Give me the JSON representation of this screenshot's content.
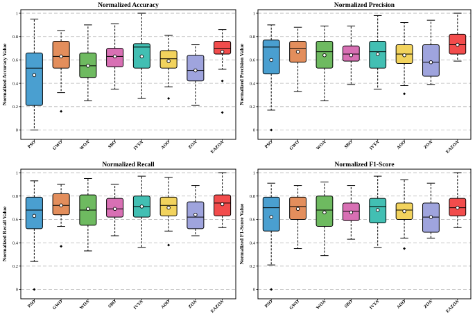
{
  "categories": [
    "PSO",
    "GWO",
    "WOA",
    "SBO",
    "IVYA",
    "AOO",
    "ZOA",
    "EAZOA"
  ],
  "colors": [
    "#4a9fd0",
    "#e38e5c",
    "#6eba60",
    "#d870b4",
    "#42bfb3",
    "#f2d35d",
    "#9fa4dd",
    "#f24c4c"
  ],
  "yticks": [
    0,
    0.2,
    0.4,
    0.6,
    0.8,
    1
  ],
  "chart_data": [
    {
      "type": "box",
      "title": "Normalized Accuracy",
      "ylabel": "Normalized Accuracy Value",
      "ylim": [
        -0.08,
        1.03
      ],
      "boxes": [
        {
          "name": "PSO",
          "whislo": 0.0,
          "q1": 0.21,
          "med": 0.53,
          "q3": 0.66,
          "whishi": 0.95,
          "mean": 0.47,
          "outliers": []
        },
        {
          "name": "GWO",
          "whislo": 0.32,
          "q1": 0.53,
          "med": 0.63,
          "q3": 0.76,
          "whishi": 0.85,
          "mean": 0.63,
          "outliers": [
            0.16
          ]
        },
        {
          "name": "WOA",
          "whislo": 0.25,
          "q1": 0.45,
          "med": 0.55,
          "q3": 0.66,
          "whishi": 0.9,
          "mean": 0.55,
          "outliers": []
        },
        {
          "name": "SBO",
          "whislo": 0.35,
          "q1": 0.54,
          "med": 0.63,
          "q3": 0.7,
          "whishi": 0.91,
          "mean": 0.63,
          "outliers": []
        },
        {
          "name": "IVYA",
          "whislo": 0.27,
          "q1": 0.53,
          "med": 0.71,
          "q3": 0.74,
          "whishi": 1.0,
          "mean": 0.63,
          "outliers": []
        },
        {
          "name": "AOO",
          "whislo": 0.37,
          "q1": 0.53,
          "med": 0.61,
          "q3": 0.68,
          "whishi": 0.81,
          "mean": 0.59,
          "outliers": [
            0.27
          ]
        },
        {
          "name": "ZOA",
          "whislo": 0.21,
          "q1": 0.42,
          "med": 0.51,
          "q3": 0.64,
          "whishi": 0.73,
          "mean": 0.51,
          "outliers": []
        },
        {
          "name": "EAZOA",
          "whislo": 0.52,
          "q1": 0.65,
          "med": 0.7,
          "q3": 0.76,
          "whishi": 0.86,
          "mean": 0.67,
          "outliers": [
            0.42,
            0.15
          ]
        }
      ]
    },
    {
      "type": "box",
      "title": "Normalized Precision",
      "ylabel": "Normalized Precision Value",
      "ylim": [
        -0.08,
        1.03
      ],
      "boxes": [
        {
          "name": "PSO",
          "whislo": 0.17,
          "q1": 0.48,
          "med": 0.71,
          "q3": 0.77,
          "whishi": 0.9,
          "mean": 0.6,
          "outliers": [
            0.0
          ]
        },
        {
          "name": "GWO",
          "whislo": 0.33,
          "q1": 0.58,
          "med": 0.7,
          "q3": 0.76,
          "whishi": 0.88,
          "mean": 0.67,
          "outliers": []
        },
        {
          "name": "WOA",
          "whislo": 0.25,
          "q1": 0.53,
          "med": 0.67,
          "q3": 0.76,
          "whishi": 0.89,
          "mean": 0.64,
          "outliers": []
        },
        {
          "name": "SBO",
          "whislo": 0.39,
          "q1": 0.59,
          "med": 0.65,
          "q3": 0.72,
          "whishi": 0.89,
          "mean": 0.64,
          "outliers": []
        },
        {
          "name": "IVYA",
          "whislo": 0.35,
          "q1": 0.53,
          "med": 0.67,
          "q3": 0.76,
          "whishi": 0.98,
          "mean": 0.65,
          "outliers": []
        },
        {
          "name": "AOO",
          "whislo": 0.38,
          "q1": 0.57,
          "med": 0.65,
          "q3": 0.73,
          "whishi": 0.92,
          "mean": 0.64,
          "outliers": [
            0.31
          ]
        },
        {
          "name": "ZOA",
          "whislo": 0.39,
          "q1": 0.46,
          "med": 0.58,
          "q3": 0.73,
          "whishi": 0.94,
          "mean": 0.58,
          "outliers": []
        },
        {
          "name": "EAZOA",
          "whislo": 0.59,
          "q1": 0.65,
          "med": 0.73,
          "q3": 0.82,
          "whishi": 1.0,
          "mean": 0.73,
          "outliers": []
        }
      ]
    },
    {
      "type": "box",
      "title": "Normalized Recall",
      "ylabel": "Normalized Recall Value",
      "ylim": [
        -0.08,
        1.03
      ],
      "boxes": [
        {
          "name": "PSO",
          "whislo": 0.24,
          "q1": 0.52,
          "med": 0.68,
          "q3": 0.79,
          "whishi": 0.93,
          "mean": 0.63,
          "outliers": [
            0.0
          ]
        },
        {
          "name": "GWO",
          "whislo": 0.54,
          "q1": 0.64,
          "med": 0.72,
          "q3": 0.82,
          "whishi": 0.9,
          "mean": 0.72,
          "outliers": [
            0.37
          ]
        },
        {
          "name": "WOA",
          "whislo": 0.33,
          "q1": 0.55,
          "med": 0.68,
          "q3": 0.81,
          "whishi": 0.95,
          "mean": 0.69,
          "outliers": []
        },
        {
          "name": "SBO",
          "whislo": 0.46,
          "q1": 0.62,
          "med": 0.69,
          "q3": 0.78,
          "whishi": 0.9,
          "mean": 0.69,
          "outliers": []
        },
        {
          "name": "IVYA",
          "whislo": 0.36,
          "q1": 0.62,
          "med": 0.71,
          "q3": 0.8,
          "whishi": 0.97,
          "mean": 0.71,
          "outliers": []
        },
        {
          "name": "AOO",
          "whislo": 0.5,
          "q1": 0.63,
          "med": 0.72,
          "q3": 0.79,
          "whishi": 0.96,
          "mean": 0.7,
          "outliers": [
            0.38
          ]
        },
        {
          "name": "ZOA",
          "whislo": 0.46,
          "q1": 0.52,
          "med": 0.62,
          "q3": 0.75,
          "whishi": 0.89,
          "mean": 0.64,
          "outliers": []
        },
        {
          "name": "EAZOA",
          "whislo": 0.53,
          "q1": 0.63,
          "med": 0.74,
          "q3": 0.81,
          "whishi": 1.0,
          "mean": 0.73,
          "outliers": []
        }
      ]
    },
    {
      "type": "box",
      "title": "Normalized F1-Score",
      "ylabel": "Normalized F1-Score Value",
      "ylim": [
        -0.08,
        1.03
      ],
      "boxes": [
        {
          "name": "PSO",
          "whislo": 0.21,
          "q1": 0.5,
          "med": 0.7,
          "q3": 0.79,
          "whishi": 0.91,
          "mean": 0.62,
          "outliers": [
            0.0
          ]
        },
        {
          "name": "GWO",
          "whislo": 0.35,
          "q1": 0.6,
          "med": 0.71,
          "q3": 0.79,
          "whishi": 0.89,
          "mean": 0.69,
          "outliers": []
        },
        {
          "name": "WOA",
          "whislo": 0.29,
          "q1": 0.54,
          "med": 0.68,
          "q3": 0.8,
          "whishi": 0.92,
          "mean": 0.66,
          "outliers": []
        },
        {
          "name": "SBO",
          "whislo": 0.43,
          "q1": 0.59,
          "med": 0.67,
          "q3": 0.74,
          "whishi": 0.89,
          "mean": 0.66,
          "outliers": []
        },
        {
          "name": "IVYA",
          "whislo": 0.36,
          "q1": 0.57,
          "med": 0.71,
          "q3": 0.78,
          "whishi": 0.97,
          "mean": 0.68,
          "outliers": []
        },
        {
          "name": "AOO",
          "whislo": 0.44,
          "q1": 0.6,
          "med": 0.68,
          "q3": 0.74,
          "whishi": 0.94,
          "mean": 0.67,
          "outliers": [
            0.35
          ]
        },
        {
          "name": "ZOA",
          "whislo": 0.44,
          "q1": 0.49,
          "med": 0.62,
          "q3": 0.74,
          "whishi": 0.91,
          "mean": 0.62,
          "outliers": []
        },
        {
          "name": "EAZOA",
          "whislo": 0.53,
          "q1": 0.63,
          "med": 0.7,
          "q3": 0.78,
          "whishi": 1.0,
          "mean": 0.7,
          "outliers": []
        }
      ]
    }
  ]
}
